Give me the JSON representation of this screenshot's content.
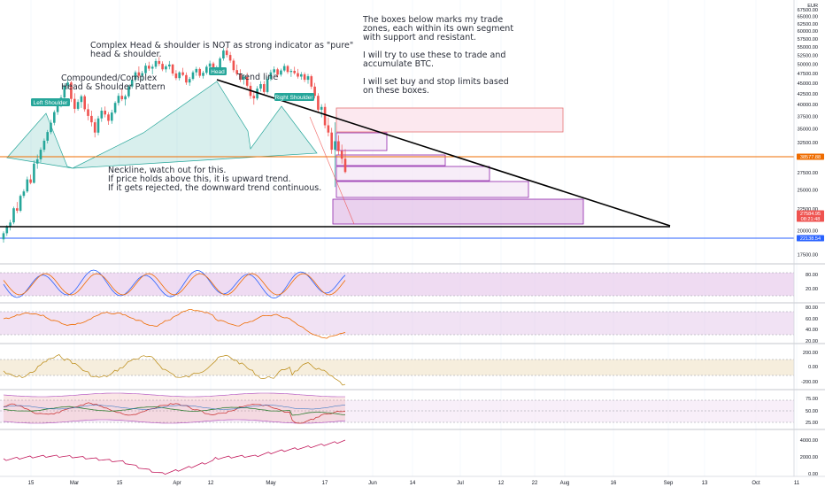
{
  "header": {
    "currency": "EUR"
  },
  "chart_data": {
    "type": "candlestick",
    "symbol_currency": "EUR",
    "price_axis": {
      "ticks": [
        67500,
        65000,
        62500,
        60000,
        57500,
        55000,
        52500,
        50000,
        47500,
        45000,
        42500,
        40000,
        37500,
        35000,
        32500,
        30000,
        27500,
        25000,
        22500,
        20000,
        17500
      ],
      "scale": "log"
    },
    "time_axis": {
      "labels": [
        "15",
        "Mar",
        "15",
        "Apr",
        "12",
        "May",
        "17",
        "Jun",
        "14",
        "Jul",
        "12",
        "22",
        "Aug",
        "16",
        "Sep",
        "13",
        "Oct",
        "11"
      ]
    },
    "price_tags": [
      {
        "value": "38577.88",
        "color": "#ef6c00"
      },
      {
        "value": "27584.95",
        "sub": "08:21:48",
        "color": "#ef5350"
      },
      {
        "value": "22138.54",
        "color": "#2962ff"
      }
    ],
    "ohlc_series": [
      [
        19050,
        19900,
        18700,
        19700
      ],
      [
        19700,
        20600,
        19400,
        20400
      ],
      [
        20400,
        21200,
        20000,
        20900
      ],
      [
        20900,
        22800,
        20700,
        22600
      ],
      [
        22600,
        23400,
        22000,
        22300
      ],
      [
        22300,
        24400,
        22100,
        24200
      ],
      [
        24200,
        25100,
        23900,
        24800
      ],
      [
        24800,
        26900,
        24600,
        26500
      ],
      [
        26500,
        27200,
        25800,
        26000
      ],
      [
        26000,
        29400,
        25900,
        28900
      ],
      [
        28900,
        30400,
        28100,
        29600
      ],
      [
        29600,
        31600,
        29100,
        31200
      ],
      [
        31200,
        33200,
        30800,
        32800
      ],
      [
        32800,
        34800,
        32300,
        34400
      ],
      [
        34400,
        36800,
        34000,
        36200
      ],
      [
        36200,
        38800,
        35700,
        38400
      ],
      [
        38400,
        40600,
        37800,
        40100
      ],
      [
        40100,
        42200,
        39400,
        41600
      ],
      [
        41600,
        45000,
        41200,
        44400
      ],
      [
        44400,
        46300,
        43600,
        45200
      ],
      [
        45200,
        45600,
        40600,
        41300
      ],
      [
        41300,
        42600,
        38200,
        39100
      ],
      [
        39100,
        41200,
        38700,
        40600
      ],
      [
        40600,
        42300,
        39300,
        41900
      ],
      [
        41900,
        42300,
        38500,
        39000
      ],
      [
        39000,
        40200,
        36700,
        37600
      ],
      [
        37600,
        38700,
        35500,
        36300
      ],
      [
        36300,
        37000,
        33400,
        34300
      ],
      [
        34300,
        37600,
        33800,
        37100
      ],
      [
        37100,
        39400,
        36400,
        38700
      ],
      [
        38700,
        39600,
        37300,
        37900
      ],
      [
        37900,
        38400,
        35800,
        36600
      ],
      [
        36600,
        38900,
        36000,
        38300
      ],
      [
        38300,
        40800,
        38000,
        40400
      ],
      [
        40400,
        42600,
        39800,
        42000
      ],
      [
        42000,
        43700,
        40800,
        41200
      ],
      [
        41200,
        42300,
        39800,
        41900
      ],
      [
        41900,
        44600,
        41500,
        44200
      ],
      [
        44200,
        46600,
        43700,
        45900
      ],
      [
        45900,
        48300,
        45300,
        47800
      ],
      [
        47800,
        49400,
        46400,
        46900
      ],
      [
        46900,
        48200,
        45600,
        47600
      ],
      [
        47600,
        50300,
        47100,
        49600
      ],
      [
        49600,
        50700,
        48200,
        48800
      ],
      [
        48800,
        50000,
        47300,
        49300
      ],
      [
        49300,
        51600,
        48700,
        50900
      ],
      [
        50900,
        52000,
        49500,
        50100
      ],
      [
        50100,
        50800,
        48100,
        48600
      ],
      [
        48600,
        49900,
        47800,
        49400
      ],
      [
        49400,
        50900,
        48600,
        49900
      ],
      [
        49900,
        50100,
        46900,
        47500
      ],
      [
        47500,
        48400,
        45800,
        46300
      ],
      [
        46300,
        48100,
        45700,
        47800
      ],
      [
        47800,
        49000,
        46800,
        47100
      ],
      [
        47100,
        47800,
        44600,
        45200
      ],
      [
        45200,
        46600,
        44400,
        46100
      ],
      [
        46100,
        48300,
        45700,
        47800
      ],
      [
        47800,
        49300,
        46900,
        48700
      ],
      [
        48700,
        49100,
        46400,
        46900
      ],
      [
        46900,
        48200,
        46200,
        47700
      ],
      [
        47700,
        49800,
        47200,
        49300
      ],
      [
        49300,
        51000,
        48600,
        50200
      ],
      [
        50200,
        50700,
        47800,
        48300
      ],
      [
        48300,
        49600,
        47500,
        49100
      ],
      [
        49100,
        52100,
        48600,
        51600
      ],
      [
        51600,
        54600,
        51000,
        53900
      ],
      [
        53900,
        54800,
        51900,
        52600
      ],
      [
        52600,
        53500,
        50400,
        51000
      ],
      [
        51000,
        51600,
        47800,
        48400
      ],
      [
        48400,
        49900,
        46900,
        47400
      ],
      [
        47400,
        48600,
        45300,
        45900
      ],
      [
        45900,
        47300,
        44700,
        46700
      ],
      [
        46700,
        47700,
        43900,
        44400
      ],
      [
        44400,
        45300,
        41300,
        42000
      ],
      [
        42000,
        43100,
        40000,
        41400
      ],
      [
        41400,
        44300,
        41000,
        43700
      ],
      [
        43700,
        45500,
        43000,
        44800
      ],
      [
        44800,
        45600,
        42300,
        42900
      ],
      [
        42900,
        46700,
        42500,
        46100
      ],
      [
        46100,
        48500,
        45600,
        47800
      ],
      [
        47800,
        49400,
        47100,
        48600
      ],
      [
        48600,
        49000,
        46500,
        47200
      ],
      [
        47200,
        48800,
        46700,
        48300
      ],
      [
        48300,
        50200,
        47900,
        49500
      ],
      [
        49500,
        49800,
        47400,
        47900
      ],
      [
        47900,
        48700,
        46600,
        48200
      ],
      [
        48200,
        49300,
        47200,
        47600
      ],
      [
        47600,
        48700,
        46200,
        46700
      ],
      [
        46700,
        47900,
        45900,
        47300
      ],
      [
        47300,
        47800,
        45300,
        45900
      ],
      [
        45900,
        47400,
        44900,
        46800
      ],
      [
        46800,
        47200,
        43600,
        44200
      ],
      [
        44200,
        45100,
        41400,
        42000
      ],
      [
        42000,
        42600,
        38300,
        38900
      ],
      [
        38900,
        40100,
        37300,
        39500
      ],
      [
        39500,
        40300,
        35100,
        35700
      ],
      [
        35700,
        37300,
        33600,
        34300
      ],
      [
        34300,
        35200,
        30500,
        31200
      ],
      [
        31200,
        36300,
        25400,
        32700
      ],
      [
        32700,
        33800,
        30300,
        31000
      ],
      [
        31000,
        32100,
        28900,
        29700
      ],
      [
        29700,
        31300,
        27400,
        27585
      ]
    ],
    "indicators": {
      "stoch_rsi": {
        "levels": [
          80,
          20
        ],
        "ticks": [
          "80.00",
          "20.00"
        ]
      },
      "rsi": {
        "levels": [
          70,
          30
        ],
        "ticks": [
          "80.00",
          "60.00",
          "40.00",
          "20.00"
        ],
        "band": [
          30,
          70
        ]
      },
      "cci": {
        "levels": [
          100,
          -100
        ],
        "ticks": [
          "200.00",
          "0.00",
          "-200.00"
        ]
      },
      "bb_rsi": {
        "ticks": [
          "75.00",
          "50.00",
          "25.00"
        ],
        "band": [
          25,
          75
        ]
      },
      "cumulative": {
        "ticks": [
          "4000.00",
          "2000.00",
          "0.00"
        ]
      }
    }
  },
  "annotations": {
    "complex_note": "Complex Head & shoulder is NOT as strong indicator as \"pure\" head & shoulder.",
    "pattern_title": "Compounded/Complex\nHead & Shoulder Pattern",
    "trend_line": "Trend line",
    "trade_zones_note": "The boxes below marks my trade zones, each within its own segment with support and resistant.\n\nI will try to use these to trade and accumulate BTC.\n\nI will set buy and stop limits based on these boxes.",
    "neckline_note": "Neckline, watch out for this.\nIf price holds above this, it is upward trend.\nIf it gets rejected, the downward trend continuous.",
    "left_shoulder": "Left Shoulder",
    "head": "Head",
    "right_shoulder": "Right Shoulder"
  },
  "colors": {
    "up": "#26a69a",
    "down": "#ef5350",
    "background": "#ffffff",
    "badge": "#26a69a",
    "pattern_fill": "#26a69a",
    "zone_purple": "#9c27b0",
    "zone_red": "#f48fb1",
    "trend_line": "#000000",
    "neckline": "#000000",
    "orange_line": "#ef6c00",
    "blue_line": "#2962ff"
  }
}
